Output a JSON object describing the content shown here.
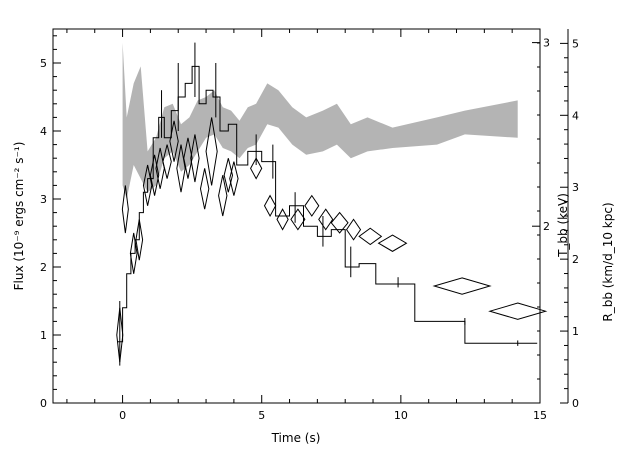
{
  "chart_data": {
    "type": "line",
    "xlabel": "Time (s)",
    "ylabel_left": "Flux (10⁻⁹ ergs cm⁻² s⁻¹)",
    "ylabel_right_inner": "T_bb (keV)",
    "ylabel_right_outer": "R_bb (km/d_10 kpc)",
    "xlim": [
      -2.5,
      15
    ],
    "ylim_flux": [
      0,
      5.5
    ],
    "ylim_R": [
      0,
      5.2
    ],
    "x_ticks": [
      "0",
      "5",
      "10",
      "15"
    ],
    "flux_ticks": [
      "0",
      "1",
      "2",
      "3",
      "4",
      "5"
    ],
    "R_ticks": [
      "0",
      "1",
      "2",
      "3",
      "4",
      "5"
    ],
    "T_ticks": [
      "2",
      "3"
    ],
    "T_tick_positions_flux": [
      2.6,
      5.3
    ],
    "flux_curve": [
      {
        "x0": -0.2,
        "x1": 0.0,
        "y": 0.9
      },
      {
        "x0": 0.0,
        "x1": 0.15,
        "y": 1.4
      },
      {
        "x0": 0.15,
        "x1": 0.3,
        "y": 1.9
      },
      {
        "x0": 0.3,
        "x1": 0.45,
        "y": 2.2
      },
      {
        "x0": 0.45,
        "x1": 0.6,
        "y": 2.4
      },
      {
        "x0": 0.6,
        "x1": 0.75,
        "y": 2.8
      },
      {
        "x0": 0.75,
        "x1": 0.9,
        "y": 3.1
      },
      {
        "x0": 0.9,
        "x1": 1.1,
        "y": 3.3
      },
      {
        "x0": 1.1,
        "x1": 1.3,
        "y": 3.9
      },
      {
        "x0": 1.3,
        "x1": 1.5,
        "y": 4.2
      },
      {
        "x0": 1.5,
        "x1": 1.75,
        "y": 3.9
      },
      {
        "x0": 1.75,
        "x1": 2.0,
        "y": 4.3
      },
      {
        "x0": 2.0,
        "x1": 2.25,
        "y": 4.5
      },
      {
        "x0": 2.25,
        "x1": 2.5,
        "y": 4.7
      },
      {
        "x0": 2.5,
        "x1": 2.75,
        "y": 4.95
      },
      {
        "x0": 2.75,
        "x1": 3.0,
        "y": 4.4
      },
      {
        "x0": 3.0,
        "x1": 3.25,
        "y": 4.6
      },
      {
        "x0": 3.25,
        "x1": 3.5,
        "y": 4.5
      },
      {
        "x0": 3.5,
        "x1": 3.8,
        "y": 4.0
      },
      {
        "x0": 3.8,
        "x1": 4.1,
        "y": 4.1
      },
      {
        "x0": 4.1,
        "x1": 4.5,
        "y": 3.5
      },
      {
        "x0": 4.5,
        "x1": 5.0,
        "y": 3.7
      },
      {
        "x0": 5.0,
        "x1": 5.5,
        "y": 3.55
      },
      {
        "x0": 5.5,
        "x1": 6.0,
        "y": 2.75
      },
      {
        "x0": 6.0,
        "x1": 6.5,
        "y": 2.9
      },
      {
        "x0": 6.5,
        "x1": 7.0,
        "y": 2.6
      },
      {
        "x0": 7.0,
        "x1": 7.5,
        "y": 2.45
      },
      {
        "x0": 7.5,
        "x1": 8.0,
        "y": 2.55
      },
      {
        "x0": 8.0,
        "x1": 8.5,
        "y": 2.0
      },
      {
        "x0": 8.5,
        "x1": 9.1,
        "y": 2.05
      },
      {
        "x0": 9.1,
        "x1": 10.5,
        "y": 1.75
      },
      {
        "x0": 10.5,
        "x1": 12.3,
        "y": 1.2
      },
      {
        "x0": 12.3,
        "x1": 13.4,
        "y": 0.88
      },
      {
        "x0": 13.4,
        "x1": 14.9,
        "y": 0.88
      }
    ],
    "flux_errors": [
      {
        "x": -0.1,
        "lo": 0.55,
        "hi": 1.5
      },
      {
        "x": 1.4,
        "lo": 3.9,
        "hi": 4.6
      },
      {
        "x": 2.0,
        "lo": 4.0,
        "hi": 5.0
      },
      {
        "x": 2.6,
        "lo": 4.5,
        "hi": 5.3
      },
      {
        "x": 3.35,
        "lo": 4.2,
        "hi": 5.0
      },
      {
        "x": 4.8,
        "lo": 3.5,
        "hi": 3.95
      },
      {
        "x": 5.4,
        "lo": 3.3,
        "hi": 3.8
      },
      {
        "x": 6.2,
        "lo": 2.65,
        "hi": 3.1
      },
      {
        "x": 7.2,
        "lo": 2.3,
        "hi": 2.75
      },
      {
        "x": 8.2,
        "lo": 1.85,
        "hi": 2.3
      },
      {
        "x": 9.9,
        "lo": 1.7,
        "hi": 1.85
      },
      {
        "x": 12.3,
        "lo": 1.15,
        "hi": 1.25
      },
      {
        "x": 14.2,
        "lo": 0.84,
        "hi": 0.92
      }
    ],
    "radius_diamonds_flux_units": [
      {
        "x": -0.1,
        "y": 1.0,
        "dx": 0.1,
        "dy": 0.4
      },
      {
        "x": 0.1,
        "y": 2.85,
        "dx": 0.1,
        "dy": 0.35
      },
      {
        "x": 0.4,
        "y": 2.2,
        "dx": 0.12,
        "dy": 0.3
      },
      {
        "x": 0.6,
        "y": 2.4,
        "dx": 0.12,
        "dy": 0.3
      },
      {
        "x": 0.9,
        "y": 3.2,
        "dx": 0.15,
        "dy": 0.3
      },
      {
        "x": 1.15,
        "y": 3.35,
        "dx": 0.15,
        "dy": 0.3
      },
      {
        "x": 1.35,
        "y": 3.45,
        "dx": 0.15,
        "dy": 0.3
      },
      {
        "x": 1.6,
        "y": 3.55,
        "dx": 0.15,
        "dy": 0.25
      },
      {
        "x": 1.85,
        "y": 3.85,
        "dx": 0.15,
        "dy": 0.3
      },
      {
        "x": 2.1,
        "y": 3.45,
        "dx": 0.15,
        "dy": 0.35
      },
      {
        "x": 2.35,
        "y": 3.6,
        "dx": 0.15,
        "dy": 0.3
      },
      {
        "x": 2.6,
        "y": 3.6,
        "dx": 0.15,
        "dy": 0.35
      },
      {
        "x": 2.95,
        "y": 3.15,
        "dx": 0.15,
        "dy": 0.3
      },
      {
        "x": 3.2,
        "y": 3.7,
        "dx": 0.2,
        "dy": 0.5
      },
      {
        "x": 3.6,
        "y": 3.05,
        "dx": 0.15,
        "dy": 0.3
      },
      {
        "x": 3.8,
        "y": 3.35,
        "dx": 0.15,
        "dy": 0.25
      },
      {
        "x": 4.0,
        "y": 3.3,
        "dx": 0.15,
        "dy": 0.25
      },
      {
        "x": 4.8,
        "y": 3.45,
        "dx": 0.2,
        "dy": 0.15
      },
      {
        "x": 5.3,
        "y": 2.9,
        "dx": 0.2,
        "dy": 0.15
      },
      {
        "x": 5.75,
        "y": 2.7,
        "dx": 0.2,
        "dy": 0.15
      },
      {
        "x": 6.3,
        "y": 2.7,
        "dx": 0.25,
        "dy": 0.15
      },
      {
        "x": 6.8,
        "y": 2.9,
        "dx": 0.25,
        "dy": 0.15
      },
      {
        "x": 7.3,
        "y": 2.7,
        "dx": 0.25,
        "dy": 0.15
      },
      {
        "x": 7.8,
        "y": 2.65,
        "dx": 0.3,
        "dy": 0.15
      },
      {
        "x": 8.3,
        "y": 2.55,
        "dx": 0.25,
        "dy": 0.15
      },
      {
        "x": 8.9,
        "y": 2.45,
        "dx": 0.4,
        "dy": 0.12
      },
      {
        "x": 9.7,
        "y": 2.35,
        "dx": 0.5,
        "dy": 0.12
      },
      {
        "x": 12.2,
        "y": 1.72,
        "dx": 1.0,
        "dy": 0.12
      },
      {
        "x": 14.2,
        "y": 1.35,
        "dx": 1.0,
        "dy": 0.12
      }
    ],
    "temperature_band_flux_units": [
      {
        "x": 0.0,
        "lo": 3.2,
        "hi": 5.3
      },
      {
        "x": 0.15,
        "lo": 3.0,
        "hi": 4.2
      },
      {
        "x": 0.4,
        "lo": 3.5,
        "hi": 4.7
      },
      {
        "x": 0.65,
        "lo": 3.3,
        "hi": 4.95
      },
      {
        "x": 0.9,
        "lo": 3.1,
        "hi": 3.7
      },
      {
        "x": 1.2,
        "lo": 3.2,
        "hi": 3.9
      },
      {
        "x": 1.5,
        "lo": 3.6,
        "hi": 4.35
      },
      {
        "x": 1.8,
        "lo": 3.7,
        "hi": 4.4
      },
      {
        "x": 2.1,
        "lo": 3.4,
        "hi": 4.1
      },
      {
        "x": 2.4,
        "lo": 3.5,
        "hi": 4.2
      },
      {
        "x": 2.7,
        "lo": 3.7,
        "hi": 4.45
      },
      {
        "x": 3.0,
        "lo": 3.9,
        "hi": 4.5
      },
      {
        "x": 3.3,
        "lo": 3.95,
        "hi": 4.6
      },
      {
        "x": 3.6,
        "lo": 3.75,
        "hi": 4.35
      },
      {
        "x": 3.9,
        "lo": 3.7,
        "hi": 4.3
      },
      {
        "x": 4.2,
        "lo": 3.6,
        "hi": 4.15
      },
      {
        "x": 4.5,
        "lo": 3.75,
        "hi": 4.35
      },
      {
        "x": 4.8,
        "lo": 3.8,
        "hi": 4.4
      },
      {
        "x": 5.2,
        "lo": 4.1,
        "hi": 4.7
      },
      {
        "x": 5.6,
        "lo": 4.05,
        "hi": 4.6
      },
      {
        "x": 6.1,
        "lo": 3.8,
        "hi": 4.35
      },
      {
        "x": 6.6,
        "lo": 3.65,
        "hi": 4.2
      },
      {
        "x": 7.2,
        "lo": 3.7,
        "hi": 4.3
      },
      {
        "x": 7.7,
        "lo": 3.8,
        "hi": 4.4
      },
      {
        "x": 8.2,
        "lo": 3.6,
        "hi": 4.1
      },
      {
        "x": 8.8,
        "lo": 3.7,
        "hi": 4.2
      },
      {
        "x": 9.7,
        "lo": 3.75,
        "hi": 4.05
      },
      {
        "x": 11.3,
        "lo": 3.8,
        "hi": 4.2
      },
      {
        "x": 12.3,
        "lo": 3.95,
        "hi": 4.3
      },
      {
        "x": 14.2,
        "lo": 3.9,
        "hi": 4.45
      }
    ]
  }
}
